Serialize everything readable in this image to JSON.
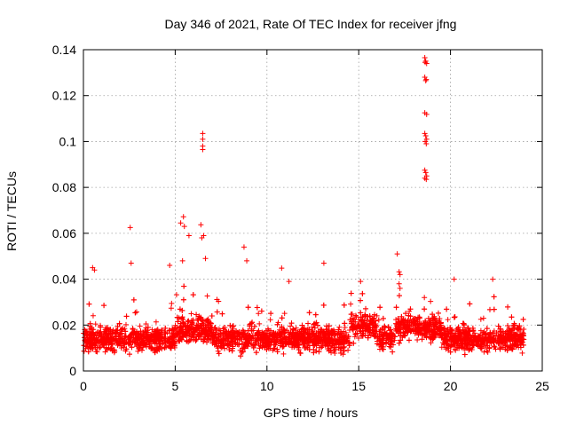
{
  "chart_data": {
    "type": "scatter",
    "title": "Day 346 of 2021, Rate Of TEC Index for receiver jfng",
    "xlabel": "GPS time / hours",
    "ylabel": "ROTI / TECUs",
    "xlim": [
      0,
      25
    ],
    "ylim": [
      0,
      0.14
    ],
    "xticks": [
      0,
      5,
      10,
      15,
      20,
      25
    ],
    "xtick_labels": [
      "0",
      "5",
      "10",
      "15",
      "20",
      "25"
    ],
    "yticks": [
      0,
      0.02,
      0.04,
      0.06,
      0.08,
      0.1,
      0.12,
      0.14
    ],
    "ytick_labels": [
      "0",
      "0.02",
      "0.04",
      "0.06",
      "0.08",
      "0.1",
      "0.12",
      "0.14"
    ],
    "grid": true,
    "marker": "+",
    "color": "#ff0000",
    "series": [
      {
        "name": "ROTI",
        "bulk_band": {
          "x_range": [
            0,
            24
          ],
          "typical_range": [
            0.005,
            0.03
          ],
          "typical_center": 0.014
        },
        "points": [
          [
            2.55,
            0.0625
          ],
          [
            5.45,
            0.0672
          ],
          [
            5.3,
            0.0645
          ],
          [
            5.5,
            0.063
          ],
          [
            5.75,
            0.059
          ],
          [
            6.4,
            0.0637
          ],
          [
            6.55,
            0.059
          ],
          [
            6.45,
            0.058
          ],
          [
            6.5,
            0.1035
          ],
          [
            6.5,
            0.101
          ],
          [
            6.5,
            0.098
          ],
          [
            6.5,
            0.0965
          ],
          [
            8.75,
            0.054
          ],
          [
            8.9,
            0.048
          ],
          [
            10.8,
            0.0448
          ],
          [
            17.1,
            0.051
          ],
          [
            17.2,
            0.0432
          ],
          [
            17.25,
            0.042
          ],
          [
            18.6,
            0.1365
          ],
          [
            18.65,
            0.135
          ],
          [
            18.62,
            0.1345
          ],
          [
            18.7,
            0.134
          ],
          [
            18.6,
            0.128
          ],
          [
            18.68,
            0.127
          ],
          [
            18.65,
            0.1265
          ],
          [
            18.6,
            0.1125
          ],
          [
            18.7,
            0.1118
          ],
          [
            18.6,
            0.1035
          ],
          [
            18.65,
            0.1025
          ],
          [
            18.7,
            0.101
          ],
          [
            18.62,
            0.1
          ],
          [
            18.68,
            0.099
          ],
          [
            18.6,
            0.0875
          ],
          [
            18.65,
            0.0865
          ],
          [
            18.7,
            0.085
          ],
          [
            18.6,
            0.084
          ],
          [
            18.68,
            0.0835
          ],
          [
            2.6,
            0.047
          ],
          [
            4.7,
            0.046
          ],
          [
            5.4,
            0.048
          ],
          [
            6.65,
            0.049
          ],
          [
            13.1,
            0.047
          ],
          [
            15.1,
            0.039
          ],
          [
            20.2,
            0.04
          ],
          [
            22.3,
            0.04
          ],
          [
            17.2,
            0.038
          ],
          [
            17.25,
            0.036
          ],
          [
            0.5,
            0.045
          ],
          [
            0.6,
            0.044
          ],
          [
            11.2,
            0.039
          ]
        ]
      }
    ]
  }
}
